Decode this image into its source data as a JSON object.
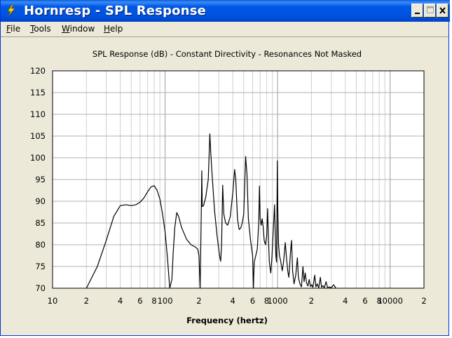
{
  "window": {
    "title": "Hornresp - SPL Response",
    "minimize_label": "_",
    "maximize_label": "□",
    "close_label": "×"
  },
  "menu": {
    "items": [
      {
        "label": "File",
        "accel": "F"
      },
      {
        "label": "Tools",
        "accel": "T"
      },
      {
        "label": "Window",
        "accel": "W"
      },
      {
        "label": "Help",
        "accel": "H"
      }
    ]
  },
  "chart_data": {
    "type": "line",
    "title": "SPL Response (dB) - Constant Directivity - Resonances Not Masked",
    "xlabel": "Frequency (hertz)",
    "ylabel": "",
    "x_scale": "log",
    "xlim": [
      10,
      20000
    ],
    "ylim": [
      70,
      120
    ],
    "grid": true,
    "x_tick_labels": [
      {
        "x": 10,
        "label": "10"
      },
      {
        "x": 20,
        "label": "2"
      },
      {
        "x": 40,
        "label": "4"
      },
      {
        "x": 60,
        "label": "6"
      },
      {
        "x": 80,
        "label": "8"
      },
      {
        "x": 100,
        "label": "100"
      },
      {
        "x": 200,
        "label": "2"
      },
      {
        "x": 400,
        "label": "4"
      },
      {
        "x": 600,
        "label": "6"
      },
      {
        "x": 800,
        "label": "8"
      },
      {
        "x": 1000,
        "label": "1000"
      },
      {
        "x": 2000,
        "label": "2"
      },
      {
        "x": 4000,
        "label": "4"
      },
      {
        "x": 6000,
        "label": "6"
      },
      {
        "x": 8000,
        "label": "8"
      },
      {
        "x": 10000,
        "label": "10000"
      },
      {
        "x": 20000,
        "label": "2"
      }
    ],
    "y_ticks": [
      70,
      75,
      80,
      85,
      90,
      95,
      100,
      105,
      110,
      115,
      120
    ],
    "series": [
      {
        "color": "#000000",
        "points": [
          [
            20,
            70
          ],
          [
            25,
            75
          ],
          [
            30,
            81
          ],
          [
            35,
            86.5
          ],
          [
            40,
            89
          ],
          [
            45,
            89.2
          ],
          [
            50,
            89
          ],
          [
            55,
            89.2
          ],
          [
            60,
            89.8
          ],
          [
            65,
            90.8
          ],
          [
            70,
            92.2
          ],
          [
            75,
            93.3
          ],
          [
            80,
            93.6
          ],
          [
            85,
            92.5
          ],
          [
            90,
            90.5
          ],
          [
            95,
            87
          ],
          [
            100,
            83
          ],
          [
            105,
            77
          ],
          [
            110,
            70
          ],
          [
            115,
            72
          ],
          [
            118,
            78
          ],
          [
            122,
            84
          ],
          [
            127,
            87.4
          ],
          [
            132,
            86.5
          ],
          [
            140,
            84
          ],
          [
            155,
            81.3
          ],
          [
            170,
            80
          ],
          [
            185,
            79.5
          ],
          [
            195,
            79
          ],
          [
            200,
            77.5
          ],
          [
            205,
            70
          ],
          [
            210,
            88
          ],
          [
            212,
            97
          ],
          [
            214,
            88.8
          ],
          [
            220,
            89
          ],
          [
            230,
            91
          ],
          [
            242,
            95
          ],
          [
            250,
            105.5
          ],
          [
            255,
            101
          ],
          [
            262,
            96
          ],
          [
            275,
            88
          ],
          [
            290,
            82
          ],
          [
            305,
            77.5
          ],
          [
            312,
            76.2
          ],
          [
            318,
            80
          ],
          [
            325,
            93.7
          ],
          [
            333,
            87
          ],
          [
            345,
            85
          ],
          [
            360,
            84.5
          ],
          [
            380,
            86.5
          ],
          [
            400,
            92
          ],
          [
            415,
            97.3
          ],
          [
            425,
            95
          ],
          [
            440,
            86
          ],
          [
            455,
            83.5
          ],
          [
            470,
            83.8
          ],
          [
            485,
            85
          ],
          [
            500,
            87
          ],
          [
            520,
            100.3
          ],
          [
            535,
            96
          ],
          [
            550,
            86
          ],
          [
            575,
            81
          ],
          [
            600,
            77.5
          ],
          [
            610,
            70
          ],
          [
            620,
            76
          ],
          [
            640,
            77.5
          ],
          [
            660,
            79
          ],
          [
            680,
            85
          ],
          [
            690,
            93.5
          ],
          [
            700,
            86
          ],
          [
            715,
            84.5
          ],
          [
            730,
            86
          ],
          [
            745,
            84
          ],
          [
            760,
            81
          ],
          [
            780,
            80
          ],
          [
            800,
            82
          ],
          [
            815,
            88.3
          ],
          [
            830,
            81
          ],
          [
            845,
            76
          ],
          [
            870,
            73.5
          ],
          [
            890,
            77
          ],
          [
            920,
            84.5
          ],
          [
            940,
            89.2
          ],
          [
            950,
            84
          ],
          [
            965,
            77.5
          ],
          [
            980,
            76
          ],
          [
            995,
            99.3
          ],
          [
            1005,
            88
          ],
          [
            1020,
            80
          ],
          [
            1040,
            77.5
          ],
          [
            1070,
            76
          ],
          [
            1100,
            74
          ],
          [
            1130,
            76
          ],
          [
            1170,
            80.5
          ],
          [
            1200,
            77
          ],
          [
            1230,
            74
          ],
          [
            1260,
            72.5
          ],
          [
            1300,
            78
          ],
          [
            1330,
            81
          ],
          [
            1360,
            74
          ],
          [
            1400,
            71
          ],
          [
            1450,
            73
          ],
          [
            1500,
            77
          ],
          [
            1530,
            72.5
          ],
          [
            1580,
            71
          ],
          [
            1630,
            70.3
          ],
          [
            1680,
            75
          ],
          [
            1720,
            71.5
          ],
          [
            1760,
            73.5
          ],
          [
            1810,
            71.2
          ],
          [
            1860,
            70.5
          ],
          [
            1910,
            72
          ],
          [
            1960,
            70.4
          ],
          [
            2010,
            70.8
          ],
          [
            2060,
            70.2
          ],
          [
            2140,
            73
          ],
          [
            2190,
            70.3
          ],
          [
            2250,
            71
          ],
          [
            2320,
            70.1
          ],
          [
            2400,
            72.5
          ],
          [
            2460,
            70.2
          ],
          [
            2530,
            70.6
          ],
          [
            2600,
            70.1
          ],
          [
            2700,
            71.5
          ],
          [
            2780,
            70.1
          ],
          [
            2880,
            70.3
          ],
          [
            3000,
            70.1
          ],
          [
            3150,
            70.8
          ],
          [
            3300,
            70
          ]
        ]
      }
    ]
  }
}
